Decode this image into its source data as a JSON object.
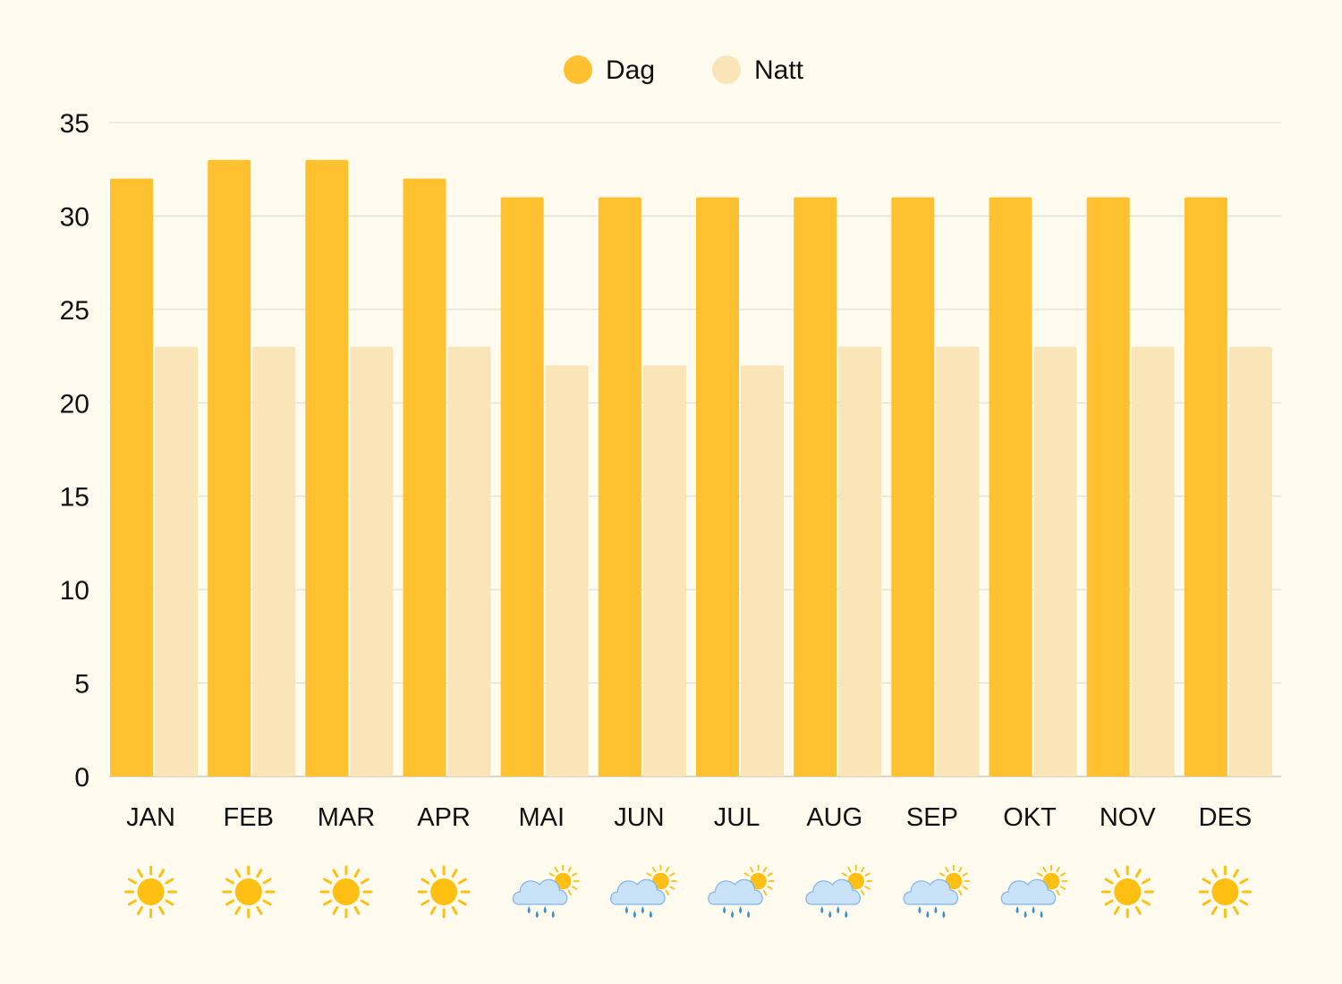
{
  "chart_data": {
    "type": "bar",
    "categories": [
      "JAN",
      "FEB",
      "MAR",
      "APR",
      "MAI",
      "JUN",
      "JUL",
      "AUG",
      "SEP",
      "OKT",
      "NOV",
      "DES"
    ],
    "series": [
      {
        "name": "Dag",
        "color": "#ffc130",
        "values": [
          32,
          33,
          33,
          32,
          31,
          31,
          31,
          31,
          31,
          31,
          31,
          31
        ]
      },
      {
        "name": "Natt",
        "color": "#f9e5b7",
        "values": [
          23,
          23,
          23,
          23,
          22,
          22,
          22,
          23,
          23,
          23,
          23,
          23
        ]
      }
    ],
    "ylim": [
      0,
      35
    ],
    "yticks": [
      "0",
      "5",
      "10",
      "15",
      "20",
      "25",
      "30",
      "35"
    ],
    "grid": true,
    "legend": "top-center",
    "weather_icons": [
      "sun-icon",
      "sun-icon",
      "sun-icon",
      "sun-icon",
      "rain-cloud-sun-icon",
      "rain-cloud-sun-icon",
      "rain-cloud-sun-icon",
      "rain-cloud-sun-icon",
      "rain-cloud-sun-icon",
      "rain-cloud-sun-icon",
      "sun-icon",
      "sun-icon"
    ],
    "colors": {
      "background": "#fffbef",
      "grid": "#dcd9cf",
      "sun": "#ffbf13",
      "cloud": "#c9e2f7",
      "rain": "#3b8fd6"
    }
  }
}
